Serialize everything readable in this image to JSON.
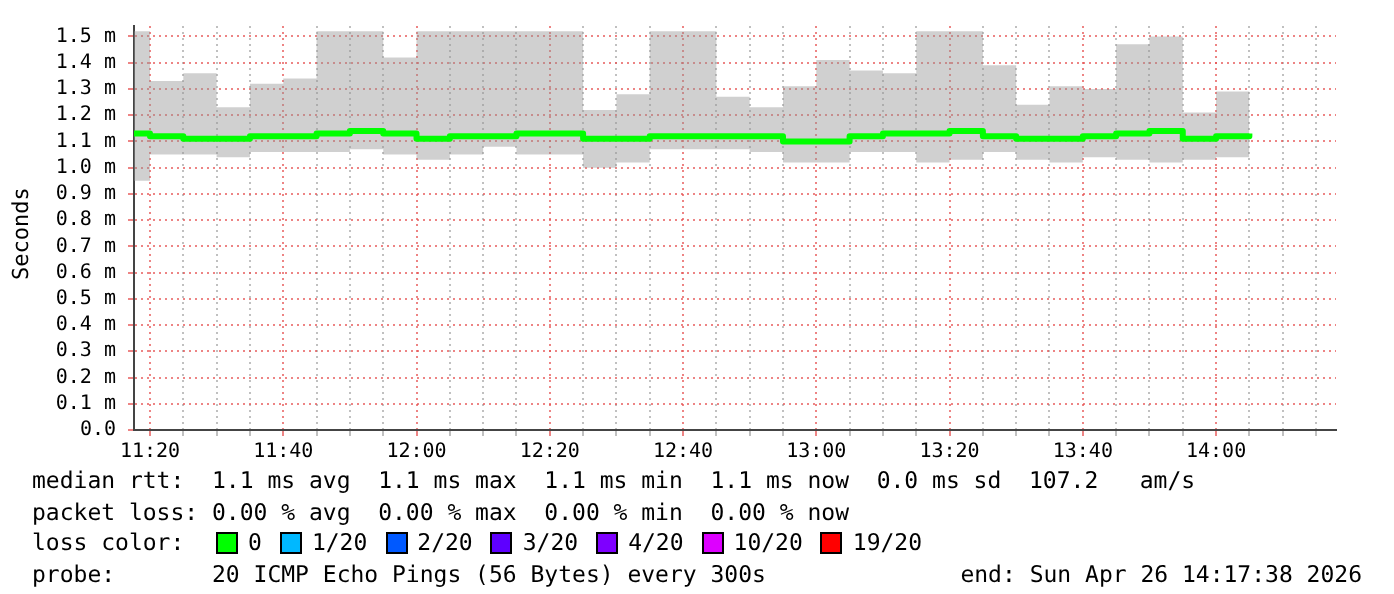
{
  "chart_data": {
    "type": "step",
    "ylabel": "Seconds",
    "legend": "bottom",
    "legend_title": "loss color:",
    "grid": true,
    "x": [
      11.2933,
      11.3333,
      11.4167,
      11.5,
      11.5833,
      11.6667,
      11.75,
      11.8333,
      11.9167,
      12,
      12.0833,
      12.1667,
      12.25,
      12.3333,
      12.4167,
      12.5,
      12.5833,
      12.6667,
      12.75,
      12.8333,
      12.9167,
      13,
      13.0833,
      13.1667,
      13.25,
      13.3333,
      13.4167,
      13.5,
      13.5833,
      13.6667,
      13.75,
      13.8333,
      13.9167,
      14,
      14.0833
    ],
    "xlim": [
      11.2933,
      14.3
    ],
    "xticks": [
      {
        "value": 11.3333,
        "label": "11:20"
      },
      {
        "value": 11.4167,
        "label": null
      },
      {
        "value": 11.5,
        "label": null
      },
      {
        "value": 11.5833,
        "label": null
      },
      {
        "value": 11.6667,
        "label": "11:40"
      },
      {
        "value": 11.75,
        "label": null
      },
      {
        "value": 11.8333,
        "label": null
      },
      {
        "value": 11.9167,
        "label": null
      },
      {
        "value": 12,
        "label": "12:00"
      },
      {
        "value": 12.0833,
        "label": null
      },
      {
        "value": 12.1667,
        "label": null
      },
      {
        "value": 12.25,
        "label": null
      },
      {
        "value": 12.3333,
        "label": "12:20"
      },
      {
        "value": 12.4167,
        "label": null
      },
      {
        "value": 12.5,
        "label": null
      },
      {
        "value": 12.5833,
        "label": null
      },
      {
        "value": 12.6667,
        "label": "12:40"
      },
      {
        "value": 12.75,
        "label": null
      },
      {
        "value": 12.8333,
        "label": null
      },
      {
        "value": 12.9167,
        "label": null
      },
      {
        "value": 13,
        "label": "13:00"
      },
      {
        "value": 13.0833,
        "label": null
      },
      {
        "value": 13.1667,
        "label": null
      },
      {
        "value": 13.25,
        "label": null
      },
      {
        "value": 13.3333,
        "label": "13:20"
      },
      {
        "value": 13.4167,
        "label": null
      },
      {
        "value": 13.5,
        "label": null
      },
      {
        "value": 13.5833,
        "label": null
      },
      {
        "value": 13.6667,
        "label": "13:40"
      },
      {
        "value": 13.75,
        "label": null
      },
      {
        "value": 13.8333,
        "label": null
      },
      {
        "value": 13.9167,
        "label": null
      },
      {
        "value": 14,
        "label": "14:00"
      },
      {
        "value": 14.0833,
        "label": null
      },
      {
        "value": 14.1667,
        "label": null
      },
      {
        "value": 14.25,
        "label": null
      }
    ],
    "ylim": [
      0,
      1.54
    ],
    "yticks": [
      {
        "value": 0,
        "label": "0.0"
      },
      {
        "value": 0.1,
        "label": "0.1 m"
      },
      {
        "value": 0.2,
        "label": "0.2 m"
      },
      {
        "value": 0.3,
        "label": "0.3 m"
      },
      {
        "value": 0.4,
        "label": "0.4 m"
      },
      {
        "value": 0.5,
        "label": "0.5 m"
      },
      {
        "value": 0.6,
        "label": "0.6 m"
      },
      {
        "value": 0.7,
        "label": "0.7 m"
      },
      {
        "value": 0.8,
        "label": "0.8 m"
      },
      {
        "value": 0.9,
        "label": "0.9 m"
      },
      {
        "value": 1,
        "label": "1.0 m"
      },
      {
        "value": 1.1,
        "label": "1.1 m"
      },
      {
        "value": 1.2,
        "label": "1.2 m"
      },
      {
        "value": 1.3,
        "label": "1.3 m"
      },
      {
        "value": 1.4,
        "label": "1.4 m"
      },
      {
        "value": 1.5,
        "label": "1.5 m"
      }
    ],
    "series": [
      {
        "name": "0",
        "color": "#00ff00",
        "values": [
          1.13,
          1.12,
          1.11,
          1.11,
          1.12,
          1.12,
          1.13,
          1.14,
          1.13,
          1.11,
          1.12,
          1.12,
          1.13,
          1.13,
          1.11,
          1.11,
          1.12,
          1.12,
          1.12,
          1.12,
          1.1,
          1.1,
          1.12,
          1.13,
          1.13,
          1.14,
          1.12,
          1.11,
          1.11,
          1.12,
          1.13,
          1.14,
          1.11,
          1.12,
          1.13
        ],
        "lower": [
          0.95,
          1.05,
          1.05,
          1.04,
          1.06,
          1.06,
          1.06,
          1.07,
          1.05,
          1.03,
          1.05,
          1.08,
          1.05,
          1.05,
          1,
          1.02,
          1.07,
          1.07,
          1.07,
          1.06,
          1.02,
          1.02,
          1.06,
          1.06,
          1.02,
          1.03,
          1.06,
          1.03,
          1.02,
          1.04,
          1.03,
          1.02,
          1.03,
          1.04,
          1.05
        ],
        "upper": [
          1.52,
          1.33,
          1.36,
          1.23,
          1.32,
          1.34,
          1.52,
          1.52,
          1.42,
          1.52,
          1.52,
          1.52,
          1.52,
          1.52,
          1.22,
          1.28,
          1.52,
          1.52,
          1.27,
          1.23,
          1.31,
          1.41,
          1.37,
          1.36,
          1.52,
          1.52,
          1.39,
          1.24,
          1.31,
          1.3,
          1.47,
          1.5,
          1.21,
          1.29,
          1.37
        ]
      },
      {
        "name": "1/20",
        "color": "#00b8ff",
        "values": [
          null,
          null,
          null,
          null,
          null,
          null,
          null,
          null,
          null,
          null,
          null,
          null,
          null,
          null,
          null,
          null,
          null,
          null,
          null,
          null,
          null,
          null,
          null,
          null,
          null,
          null,
          null,
          null,
          null,
          null,
          null,
          null,
          null,
          null,
          null
        ]
      },
      {
        "name": "2/20",
        "color": "#0059ff",
        "values": [
          null,
          null,
          null,
          null,
          null,
          null,
          null,
          null,
          null,
          null,
          null,
          null,
          null,
          null,
          null,
          null,
          null,
          null,
          null,
          null,
          null,
          null,
          null,
          null,
          null,
          null,
          null,
          null,
          null,
          null,
          null,
          null,
          null,
          null,
          null
        ]
      },
      {
        "name": "3/20",
        "color": "#5e00ff",
        "values": [
          null,
          null,
          null,
          null,
          null,
          null,
          null,
          null,
          null,
          null,
          null,
          null,
          null,
          null,
          null,
          null,
          null,
          null,
          null,
          null,
          null,
          null,
          null,
          null,
          null,
          null,
          null,
          null,
          null,
          null,
          null,
          null,
          null,
          null,
          null
        ]
      },
      {
        "name": "4/20",
        "color": "#7e00ff",
        "values": [
          null,
          null,
          null,
          null,
          null,
          null,
          null,
          null,
          null,
          null,
          null,
          null,
          null,
          null,
          null,
          null,
          null,
          null,
          null,
          null,
          null,
          null,
          null,
          null,
          null,
          null,
          null,
          null,
          null,
          null,
          null,
          null,
          null,
          null,
          null
        ]
      },
      {
        "name": "10/20",
        "color": "#dd00ff",
        "values": [
          null,
          null,
          null,
          null,
          null,
          null,
          null,
          null,
          null,
          null,
          null,
          null,
          null,
          null,
          null,
          null,
          null,
          null,
          null,
          null,
          null,
          null,
          null,
          null,
          null,
          null,
          null,
          null,
          null,
          null,
          null,
          null,
          null,
          null,
          null
        ]
      },
      {
        "name": "19/20",
        "color": "#ff0000",
        "values": [
          null,
          null,
          null,
          null,
          null,
          null,
          null,
          null,
          null,
          null,
          null,
          null,
          null,
          null,
          null,
          null,
          null,
          null,
          null,
          null,
          null,
          null,
          null,
          null,
          null,
          null,
          null,
          null,
          null,
          null,
          null,
          null,
          null,
          null,
          null
        ]
      }
    ],
    "annotations": [
      "median rtt:  1.1 ms avg  1.1 ms max  1.1 ms min  1.1 ms now  0.0 ms sd  107.2   am/s",
      "packet loss: 0.00 % avg  0.00 % max  0.00 % min  0.00 % now",
      "probe:       20 ICMP Echo Pings (56 Bytes) every 300s",
      "end: Sun Apr 26 14:17:38 2026"
    ]
  }
}
